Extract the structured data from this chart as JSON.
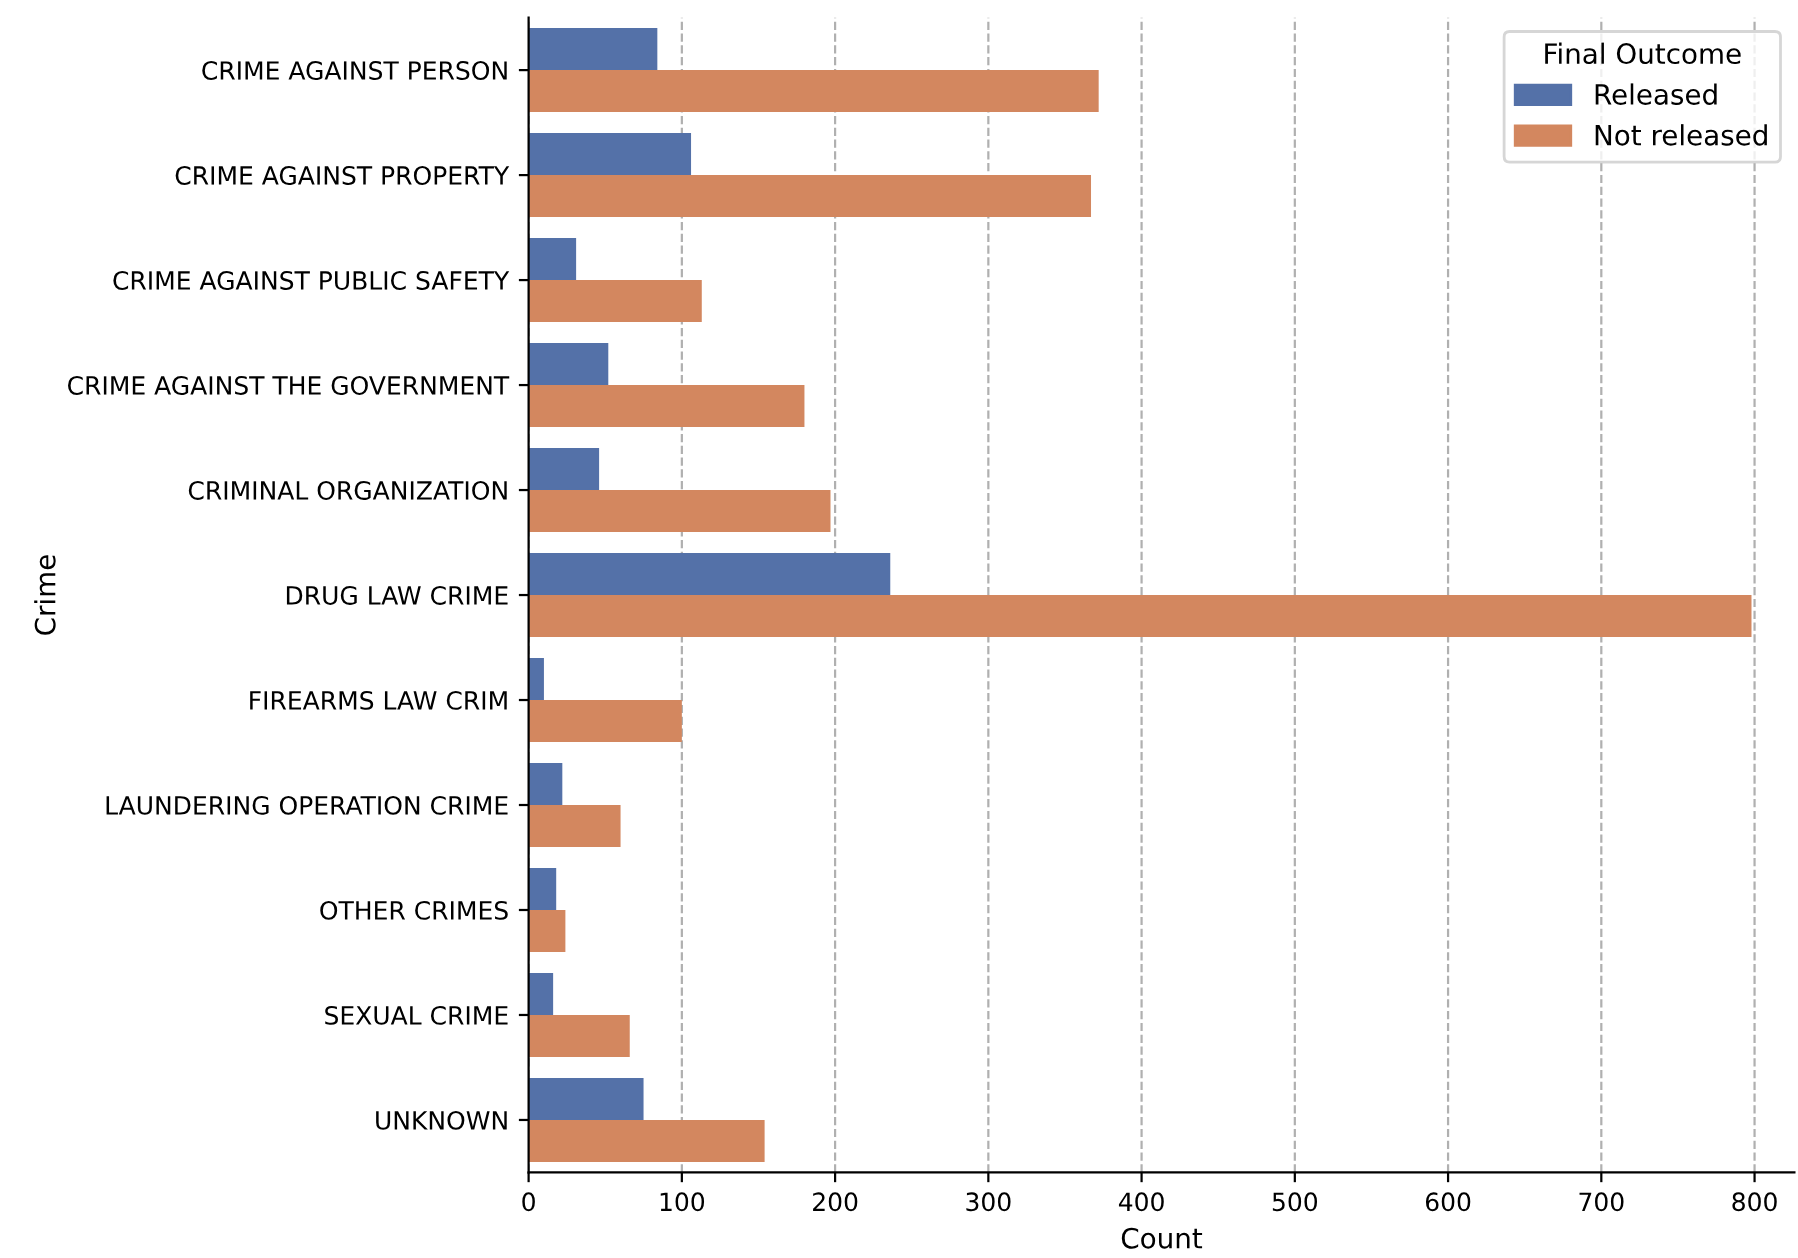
{
  "chart_data": {
    "type": "bar",
    "orientation": "horizontal",
    "xlabel": "Count",
    "ylabel": "Crime",
    "legend_title": "Final Outcome",
    "legend": "top right",
    "grid": "x",
    "categories": [
      "CRIME AGAINST PERSON",
      "CRIME AGAINST PROPERTY",
      "CRIME AGAINST PUBLIC SAFETY",
      "CRIME AGAINST THE GOVERNMENT",
      "CRIMINAL ORGANIZATION",
      "DRUG LAW CRIME",
      "FIREARMS LAW CRIM",
      "LAUNDERING OPERATION CRIME",
      "OTHER CRIMES",
      "SEXUAL CRIME",
      "UNKNOWN"
    ],
    "series": [
      {
        "name": "Released",
        "color": "#5471a8",
        "values": [
          84,
          106,
          31,
          52,
          46,
          236,
          10,
          22,
          18,
          16,
          75
        ]
      },
      {
        "name": "Not released",
        "color": "#d3875f",
        "values": [
          372,
          367,
          113,
          180,
          197,
          798,
          100,
          60,
          24,
          66,
          154
        ]
      }
    ],
    "xlim": [
      0,
      826
    ],
    "xticks": [
      0,
      100,
      200,
      300,
      400,
      500,
      600,
      700,
      800
    ]
  }
}
